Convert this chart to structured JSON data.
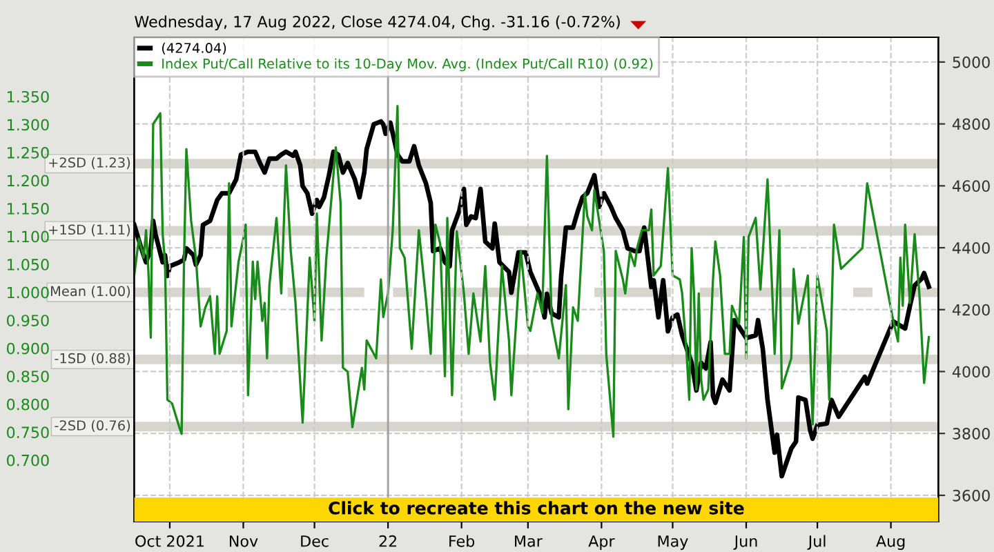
{
  "chart_data": {
    "type": "line",
    "subtitle": "Wednesday, 17 Aug 2022, Close 4274.04, Chg. -31.16 (-0.72%)",
    "annotations": [
      "Click to recreate this chart on the new site"
    ],
    "xlim": [
      "2021-09-16",
      "2022-08-21"
    ],
    "xticks": [
      {
        "value": "2021-10-01",
        "label": "Oct 2021"
      },
      {
        "value": "2021-11-01",
        "label": "Nov"
      },
      {
        "value": "2021-12-01",
        "label": "Dec"
      },
      {
        "value": "2022-01-01",
        "label": "22"
      },
      {
        "value": "2022-02-01",
        "label": "Feb"
      },
      {
        "value": "2022-03-01",
        "label": "Mar"
      },
      {
        "value": "2022-04-01",
        "label": "Apr"
      },
      {
        "value": "2022-05-01",
        "label": "May"
      },
      {
        "value": "2022-06-01",
        "label": "Jun"
      },
      {
        "value": "2022-07-01",
        "label": "Jul"
      },
      {
        "value": "2022-08-01",
        "label": "Aug"
      }
    ],
    "ylim": [
      0.59,
      1.456
    ],
    "yticks": [
      {
        "value": 0.7,
        "label": "0.700"
      },
      {
        "value": 0.75,
        "label": "0.750"
      },
      {
        "value": 0.8,
        "label": "0.800"
      },
      {
        "value": 0.85,
        "label": "0.850"
      },
      {
        "value": 0.9,
        "label": "0.900"
      },
      {
        "value": 0.95,
        "label": "0.950"
      },
      {
        "value": 1.0,
        "label": "1.000"
      },
      {
        "value": 1.05,
        "label": "1.050"
      },
      {
        "value": 1.1,
        "label": "1.100"
      },
      {
        "value": 1.15,
        "label": "1.150"
      },
      {
        "value": 1.2,
        "label": "1.200"
      },
      {
        "value": 1.25,
        "label": "1.250"
      },
      {
        "value": 1.3,
        "label": "1.300"
      },
      {
        "value": 1.35,
        "label": "1.350"
      }
    ],
    "y2lim": [
      3515,
      5080
    ],
    "y2ticks": [
      3600,
      3800,
      4000,
      4200,
      4400,
      4600,
      4800,
      5000
    ],
    "grid": true,
    "legend": "top left",
    "ref_lines": [
      {
        "axis": "y",
        "value": 1.23,
        "label": "+2SD (1.23)",
        "color": "#d6d6ce"
      },
      {
        "axis": "y",
        "value": 1.11,
        "label": "+1SD (1.11)",
        "color": "#d6d6ce"
      },
      {
        "axis": "y",
        "value": 1.0,
        "label": "Mean (1.00)",
        "color": "#d6d6ce",
        "line_style": "dashed"
      },
      {
        "axis": "y",
        "value": 0.88,
        "label": "-1SD (0.88)",
        "color": "#d6d6ce"
      },
      {
        "axis": "y",
        "value": 0.76,
        "label": "-2SD (0.76)",
        "color": "#d6d6ce"
      },
      {
        "axis": "x",
        "value": "2022-01-01",
        "color": "#a0a0a0"
      }
    ],
    "series": [
      {
        "name": "(4274.04)",
        "color": "#000000",
        "axis": "y2",
        "x": [
          "2021-09-16",
          "2021-09-19",
          "2021-09-21",
          "2021-09-23",
          "2021-09-24",
          "2021-09-25",
          "2021-09-28",
          "2021-09-29",
          "2021-09-30",
          "2021-10-01",
          "2021-10-05",
          "2021-10-07",
          "2021-10-08",
          "2021-10-11",
          "2021-10-12",
          "2021-10-14",
          "2021-10-15",
          "2021-10-18",
          "2021-10-20",
          "2021-10-21",
          "2021-10-23",
          "2021-10-26",
          "2021-10-29",
          "2021-10-31",
          "2021-11-03",
          "2021-11-06",
          "2021-11-08",
          "2021-11-10",
          "2021-11-12",
          "2021-11-15",
          "2021-11-17",
          "2021-11-19",
          "2021-11-22",
          "2021-11-23",
          "2021-11-25",
          "2021-11-26",
          "2021-11-28",
          "2021-11-30",
          "2021-12-02",
          "2021-12-03",
          "2021-12-05",
          "2021-12-07",
          "2021-12-09",
          "2021-12-11",
          "2021-12-13",
          "2021-12-15",
          "2021-12-18",
          "2021-12-20",
          "2021-12-22",
          "2021-12-23",
          "2021-12-26",
          "2021-12-29",
          "2021-12-30",
          "2021-12-31",
          "2022-01-02",
          "2022-01-05",
          "2022-01-07",
          "2022-01-10",
          "2022-01-12",
          "2022-01-14",
          "2022-01-17",
          "2022-01-19",
          "2022-01-20",
          "2022-01-23",
          "2022-01-25",
          "2022-01-27",
          "2022-01-28",
          "2022-01-31",
          "2022-02-02",
          "2022-02-03",
          "2022-02-05",
          "2022-02-07",
          "2022-02-09",
          "2022-02-11",
          "2022-02-14",
          "2022-02-15",
          "2022-02-17",
          "2022-02-21",
          "2022-02-22",
          "2022-02-25",
          "2022-02-28",
          "2022-03-02",
          "2022-03-06",
          "2022-03-08",
          "2022-03-09",
          "2022-03-11",
          "2022-03-14",
          "2022-03-15",
          "2022-03-17",
          "2022-03-20",
          "2022-03-22",
          "2022-03-24",
          "2022-03-26",
          "2022-03-29",
          "2022-03-31",
          "2022-04-02",
          "2022-04-05",
          "2022-04-07",
          "2022-04-10",
          "2022-04-12",
          "2022-04-15",
          "2022-04-17",
          "2022-04-19",
          "2022-04-22",
          "2022-04-23",
          "2022-04-25",
          "2022-04-27",
          "2022-04-29",
          "2022-05-01",
          "2022-05-03",
          "2022-05-05",
          "2022-05-09",
          "2022-05-11",
          "2022-05-13",
          "2022-05-15",
          "2022-05-17",
          "2022-05-18",
          "2022-05-19",
          "2022-05-22",
          "2022-05-25",
          "2022-05-27",
          "2022-05-29",
          "2022-06-01",
          "2022-06-05",
          "2022-06-06",
          "2022-06-08",
          "2022-06-10",
          "2022-06-13",
          "2022-06-14",
          "2022-06-16",
          "2022-06-20",
          "2022-06-22",
          "2022-06-23",
          "2022-06-26",
          "2022-06-28",
          "2022-06-29",
          "2022-07-01",
          "2022-07-05",
          "2022-07-07",
          "2022-07-10",
          "2022-07-21",
          "2022-07-22",
          "2022-08-02",
          "2022-08-07",
          "2022-08-09",
          "2022-08-11",
          "2022-08-14",
          "2022-08-15",
          "2022-08-17"
        ],
        "values": [
          4474,
          4398,
          4353,
          4398,
          4487,
          4443,
          4353,
          4376,
          4309,
          4340,
          4353,
          4362,
          4398,
          4376,
          4345,
          4376,
          4474,
          4487,
          4532,
          4554,
          4576,
          4576,
          4621,
          4701,
          4710,
          4710,
          4674,
          4643,
          4688,
          4688,
          4701,
          4710,
          4697,
          4710,
          4666,
          4599,
          4576,
          4510,
          4554,
          4532,
          4563,
          4630,
          4710,
          4701,
          4643,
          4674,
          4621,
          4563,
          4643,
          4719,
          4799,
          4808,
          4799,
          4768,
          4804,
          4701,
          4679,
          4679,
          4728,
          4666,
          4608,
          4545,
          4389,
          4398,
          4353,
          4340,
          4456,
          4518,
          4590,
          4474,
          4501,
          4496,
          4590,
          4420,
          4398,
          4478,
          4353,
          4322,
          4255,
          4385,
          4385,
          4322,
          4251,
          4175,
          4251,
          4188,
          4175,
          4309,
          4465,
          4465,
          4518,
          4563,
          4576,
          4634,
          4532,
          4576,
          4532,
          4496,
          4456,
          4398,
          4389,
          4389,
          4465,
          4273,
          4295,
          4175,
          4295,
          4130,
          4175,
          4184,
          4117,
          4028,
          3939,
          4028,
          4010,
          4095,
          3921,
          3899,
          3974,
          3939,
          4166,
          4144,
          4108,
          4117,
          4166,
          4073,
          3908,
          3738,
          3796,
          3662,
          3751,
          3774,
          3916,
          3908,
          3809,
          3783,
          3827,
          3832,
          3908,
          3854,
          3983,
          3961,
          4162,
          4139,
          4211,
          4278,
          4300,
          4318,
          4274
        ]
      },
      {
        "name": "Index Put/Call Relative to its 10-Day Mov. Avg. (Index Put/Call R10) (0.92)",
        "color": "#1a8a1a",
        "x": [
          "2021-09-16",
          "2021-09-18",
          "2021-09-20",
          "2021-09-21",
          "2021-09-22",
          "2021-09-23",
          "2021-09-24",
          "2021-09-27",
          "2021-09-28",
          "2021-09-29",
          "2021-09-30",
          "2021-10-02",
          "2021-10-05",
          "2021-10-06",
          "2021-10-07",
          "2021-10-08",
          "2021-10-10",
          "2021-10-12",
          "2021-10-14",
          "2021-10-16",
          "2021-10-18",
          "2021-10-20",
          "2021-10-21",
          "2021-10-22",
          "2021-10-25",
          "2021-10-26",
          "2021-10-27",
          "2021-10-30",
          "2021-11-01",
          "2021-11-02",
          "2021-11-03",
          "2021-11-05",
          "2021-11-06",
          "2021-11-07",
          "2021-11-09",
          "2021-11-10",
          "2021-11-11",
          "2021-11-12",
          "2021-11-15",
          "2021-11-17",
          "2021-11-19",
          "2021-11-21",
          "2021-11-23",
          "2021-11-26",
          "2021-11-29",
          "2021-12-01",
          "2021-12-02",
          "2021-12-04",
          "2021-12-06",
          "2021-12-10",
          "2021-12-12",
          "2021-12-13",
          "2021-12-15",
          "2021-12-17",
          "2021-12-21",
          "2021-12-22",
          "2021-12-23",
          "2021-12-27",
          "2021-12-29",
          "2021-12-30",
          "2022-01-01",
          "2022-01-03",
          "2022-01-05",
          "2022-01-06",
          "2022-01-08",
          "2022-01-11",
          "2022-01-14",
          "2022-01-17",
          "2022-01-19",
          "2022-01-21",
          "2022-01-23",
          "2022-01-25",
          "2022-01-26",
          "2022-01-28",
          "2022-01-30",
          "2022-02-02",
          "2022-02-04",
          "2022-02-06",
          "2022-02-09",
          "2022-02-11",
          "2022-02-13",
          "2022-02-15",
          "2022-02-18",
          "2022-02-21",
          "2022-02-22",
          "2022-02-26",
          "2022-03-01",
          "2022-03-02",
          "2022-03-05",
          "2022-03-07",
          "2022-03-09",
          "2022-03-11",
          "2022-03-14",
          "2022-03-17",
          "2022-03-18",
          "2022-03-20",
          "2022-03-22",
          "2022-03-25",
          "2022-03-26",
          "2022-03-28",
          "2022-03-29",
          "2022-04-02",
          "2022-04-03",
          "2022-04-06",
          "2022-04-07",
          "2022-04-10",
          "2022-04-11",
          "2022-04-13",
          "2022-04-15",
          "2022-04-16",
          "2022-04-18",
          "2022-04-21",
          "2022-04-22",
          "2022-04-23",
          "2022-04-26",
          "2022-04-29",
          "2022-05-01",
          "2022-05-04",
          "2022-05-05",
          "2022-05-07",
          "2022-05-08",
          "2022-05-09",
          "2022-05-10",
          "2022-05-11",
          "2022-05-12",
          "2022-05-13",
          "2022-05-14",
          "2022-05-16",
          "2022-05-18",
          "2022-05-19",
          "2022-05-21",
          "2022-05-23",
          "2022-05-25",
          "2022-05-26",
          "2022-05-29",
          "2022-05-31",
          "2022-06-01",
          "2022-06-02",
          "2022-06-05",
          "2022-06-07",
          "2022-06-10",
          "2022-06-12",
          "2022-06-13",
          "2022-06-15",
          "2022-06-16",
          "2022-06-20",
          "2022-06-21",
          "2022-06-23",
          "2022-06-27",
          "2022-06-29",
          "2022-07-01",
          "2022-07-05",
          "2022-07-06",
          "2022-07-08",
          "2022-07-11",
          "2022-07-20",
          "2022-07-22",
          "2022-08-02",
          "2022-08-04",
          "2022-08-05",
          "2022-08-06",
          "2022-08-07",
          "2022-08-09",
          "2022-08-11",
          "2022-08-13",
          "2022-08-15",
          "2022-08-17"
        ],
        "values": [
          1.03,
          1.096,
          1.062,
          1.111,
          1.037,
          0.919,
          1.301,
          1.32,
          1.104,
          1.055,
          0.808,
          0.801,
          0.759,
          0.747,
          1.055,
          1.256,
          1.128,
          1.062,
          0.939,
          0.973,
          0.993,
          0.89,
          0.993,
          0.89,
          0.931,
          1.195,
          0.939,
          1.055,
          1.096,
          1.121,
          0.816,
          1.055,
          0.988,
          1.055,
          0.949,
          0.981,
          0.882,
          1.013,
          1.133,
          0.998,
          1.227,
          1.074,
          0.981,
          0.767,
          1.062,
          0.949,
          1.141,
          0.914,
          1.062,
          1.259,
          1.16,
          0.865,
          0.858,
          0.759,
          0.865,
          0.826,
          0.914,
          0.882,
          1.023,
          0.956,
          0.998,
          1.111,
          1.333,
          1.079,
          1.062,
          0.899,
          1.111,
          0.988,
          0.89,
          1.121,
          1.087,
          0.85,
          1.133,
          0.816,
          1.109,
          0.998,
          0.89,
          0.998,
          0.912,
          1.047,
          0.875,
          0.808,
          1.047,
          0.914,
          0.816,
          1.074,
          0.939,
          0.931,
          0.998,
          0.963,
          1.244,
          0.949,
          0.882,
          1.013,
          0.791,
          0.973,
          0.949,
          1.178,
          1.136,
          1.111,
          1.183,
          1.074,
          0.89,
          0.742,
          1.074,
          1.023,
          0.998,
          1.072,
          1.047,
          1.079,
          1.111,
          1.111,
          1.148,
          1.03,
          1.047,
          1.222,
          1.03,
          1.023,
          0.998,
          0.882,
          0.808,
          1.079,
          0.998,
          0.826,
          0.998,
          0.845,
          0.808,
          0.826,
          1.023,
          1.091,
          1.03,
          0.89,
          0.89,
          0.976,
          0.944,
          1.099,
          0.882,
          1.099,
          1.133,
          1.005,
          1.202,
          0.998,
          0.89,
          1.111,
          0.828,
          0.882,
          1.042,
          0.944,
          1.03,
          0.764,
          1.03,
          0.931,
          0.808,
          1.121,
          1.042,
          1.079,
          1.195,
          0.949,
          0.912,
          1.062,
          0.976,
          1.121,
          0.981,
          1.104,
          0.998,
          0.838,
          0.92
        ]
      }
    ]
  }
}
